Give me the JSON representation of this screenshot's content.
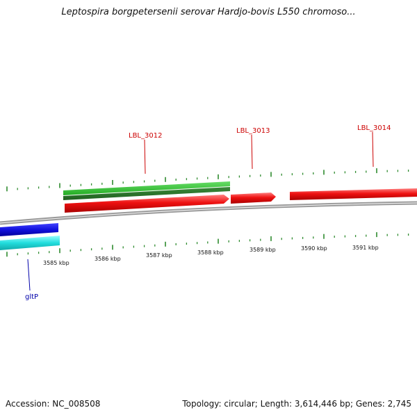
{
  "title": "Leptospira borgpetersenii serovar Hardjo-bovis L550 chromoso...",
  "footer": {
    "accession": "Accession: NC_008508",
    "summary": "Topology: circular; Length: 3,614,446 bp; Genes: 2,745"
  },
  "ruler": {
    "labels": [
      "3585 kbp",
      "3586 kbp",
      "3587 kbp",
      "3588 kbp",
      "3589 kbp",
      "3590 kbp",
      "3591 kbp"
    ]
  },
  "genes": [
    {
      "name": "LBL_3012",
      "color": "#cc0000"
    },
    {
      "name": "LBL_3013",
      "color": "#cc0000"
    },
    {
      "name": "LBL_3014",
      "color": "#cc0000"
    },
    {
      "name": "gltP",
      "color": "#0000aa"
    }
  ],
  "colors": {
    "ruler_ticks": "#2e8b2e",
    "forward_cds": "#ee1111",
    "forward_rna": "#33bb33",
    "reverse_cds": "#1111dd",
    "reverse_rna": "#22dddd",
    "backbone": "#888888"
  }
}
